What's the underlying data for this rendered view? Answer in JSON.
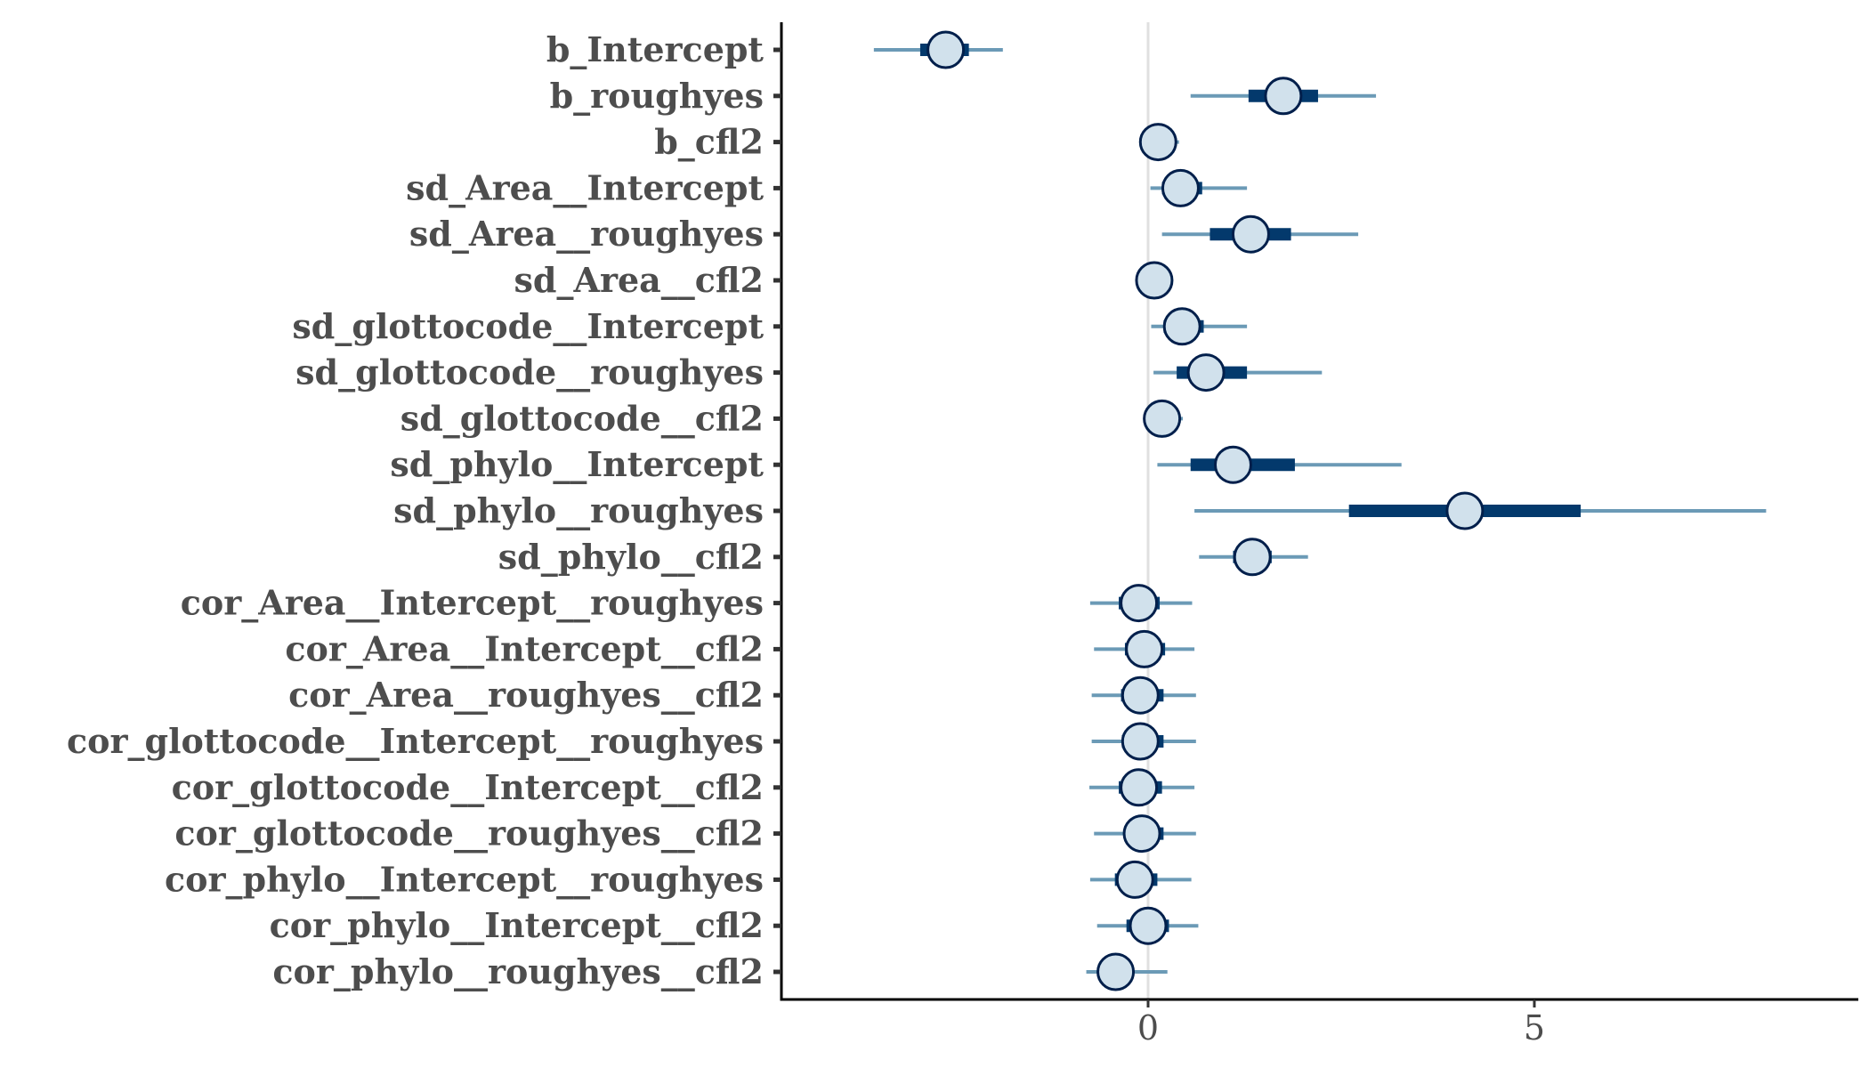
{
  "chart_data": {
    "type": "interval",
    "title": "",
    "xlabel": "",
    "ylabel": "",
    "xlim": [
      -4.75,
      9.2
    ],
    "x_ticks": [
      "0",
      "5"
    ],
    "x_tick_values": [
      0,
      5
    ],
    "zero_line": 0,
    "grid": false,
    "legend": "none",
    "colors": {
      "outer_interval": "#6b9ab6",
      "inner_interval": "#03396c",
      "point_fill": "#d1e1ec",
      "point_stroke": "#011f4b",
      "zero_line": "#e0e0e0",
      "axis": "#000000",
      "tick_label": "#4d4d4d"
    },
    "parameters": [
      {
        "name": "b_Intercept",
        "point": -2.62,
        "inner": [
          -2.95,
          -2.32
        ],
        "outer": [
          -3.55,
          -1.88
        ]
      },
      {
        "name": "b_roughyes",
        "point": 1.75,
        "inner": [
          1.3,
          2.2
        ],
        "outer": [
          0.55,
          2.95
        ]
      },
      {
        "name": "b_cfl2",
        "point": 0.13,
        "inner": [
          0.03,
          0.3
        ],
        "outer": [
          -0.08,
          0.4
        ]
      },
      {
        "name": "sd_Area__Intercept",
        "point": 0.42,
        "inner": [
          0.18,
          0.7
        ],
        "outer": [
          0.03,
          1.28
        ]
      },
      {
        "name": "sd_Area__roughyes",
        "point": 1.33,
        "inner": [
          0.8,
          1.85
        ],
        "outer": [
          0.18,
          2.72
        ]
      },
      {
        "name": "sd_Area__cfl2",
        "point": 0.08,
        "inner": [
          0.0,
          0.2
        ],
        "outer": [
          0.0,
          0.3
        ]
      },
      {
        "name": "sd_glottocode__Intercept",
        "point": 0.44,
        "inner": [
          0.2,
          0.72
        ],
        "outer": [
          0.04,
          1.28
        ]
      },
      {
        "name": "sd_glottocode__roughyes",
        "point": 0.75,
        "inner": [
          0.37,
          1.28
        ],
        "outer": [
          0.07,
          2.25
        ]
      },
      {
        "name": "sd_glottocode__cfl2",
        "point": 0.18,
        "inner": [
          0.06,
          0.33
        ],
        "outer": [
          0.01,
          0.45
        ]
      },
      {
        "name": "sd_phylo__Intercept",
        "point": 1.1,
        "inner": [
          0.55,
          1.9
        ],
        "outer": [
          0.12,
          3.28
        ]
      },
      {
        "name": "sd_phylo__roughyes",
        "point": 4.1,
        "inner": [
          2.6,
          5.6
        ],
        "outer": [
          0.6,
          8.0
        ]
      },
      {
        "name": "sd_phylo__cfl2",
        "point": 1.35,
        "inner": [
          1.1,
          1.6
        ],
        "outer": [
          0.66,
          2.07
        ]
      },
      {
        "name": "cor_Area__Intercept__roughyes",
        "point": -0.12,
        "inner": [
          -0.38,
          0.15
        ],
        "outer": [
          -0.75,
          0.57
        ]
      },
      {
        "name": "cor_Area__Intercept__cfl2",
        "point": -0.05,
        "inner": [
          -0.3,
          0.22
        ],
        "outer": [
          -0.7,
          0.6
        ]
      },
      {
        "name": "cor_Area__roughyes__cfl2",
        "point": -0.1,
        "inner": [
          -0.35,
          0.2
        ],
        "outer": [
          -0.73,
          0.62
        ]
      },
      {
        "name": "cor_glottocode__Intercept__roughyes",
        "point": -0.1,
        "inner": [
          -0.34,
          0.2
        ],
        "outer": [
          -0.73,
          0.62
        ]
      },
      {
        "name": "cor_glottocode__Intercept__cfl2",
        "point": -0.12,
        "inner": [
          -0.38,
          0.18
        ],
        "outer": [
          -0.76,
          0.6
        ]
      },
      {
        "name": "cor_glottocode__roughyes__cfl2",
        "point": -0.08,
        "inner": [
          -0.3,
          0.2
        ],
        "outer": [
          -0.7,
          0.62
        ]
      },
      {
        "name": "cor_phylo__Intercept__roughyes",
        "point": -0.17,
        "inner": [
          -0.43,
          0.12
        ],
        "outer": [
          -0.75,
          0.56
        ]
      },
      {
        "name": "cor_phylo__Intercept__cfl2",
        "point": 0.0,
        "inner": [
          -0.28,
          0.27
        ],
        "outer": [
          -0.66,
          0.65
        ]
      },
      {
        "name": "cor_phylo__roughyes__cfl2",
        "point": -0.42,
        "inner": [
          -0.6,
          -0.2
        ],
        "outer": [
          -0.8,
          0.25
        ]
      }
    ]
  }
}
